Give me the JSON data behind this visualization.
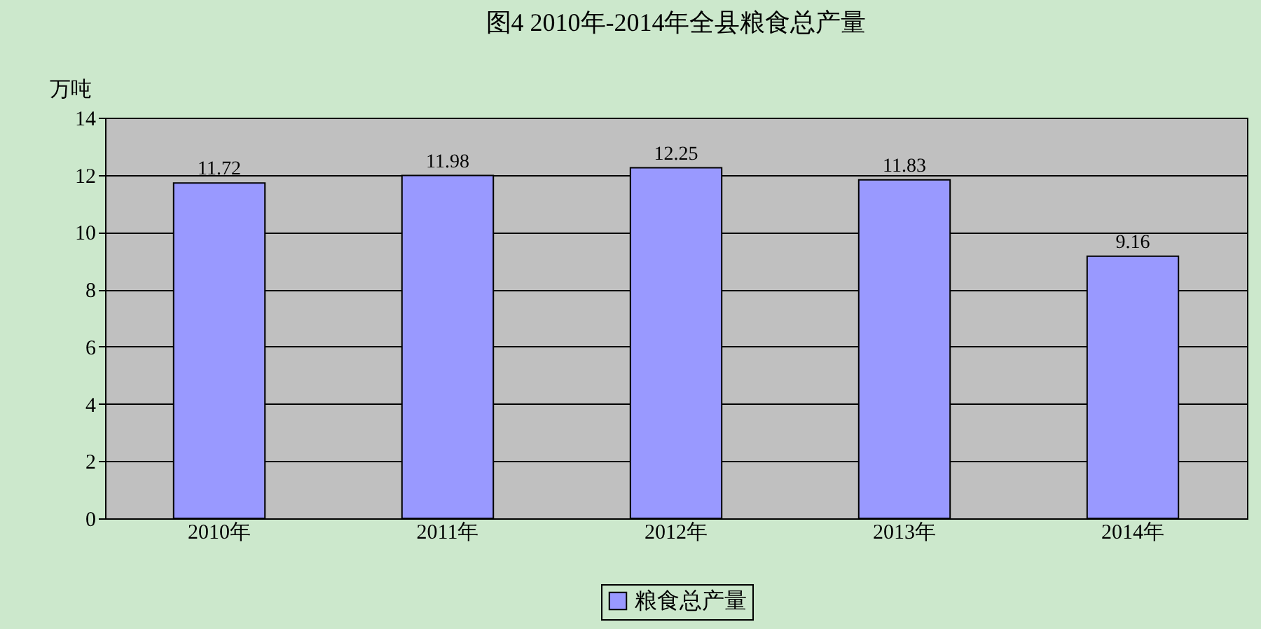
{
  "chart_data": {
    "type": "bar",
    "title": "图4      2010年-2014年全县粮食总产量",
    "ylabel": "万吨",
    "categories": [
      "2010年",
      "2011年",
      "2012年",
      "2013年",
      "2014年"
    ],
    "series": [
      {
        "name": "粮食总产量",
        "color": "#9999ff",
        "values": [
          11.72,
          11.98,
          12.25,
          11.83,
          9.16
        ]
      }
    ],
    "ylim": [
      0,
      14
    ],
    "yticks": [
      0,
      2,
      4,
      6,
      8,
      10,
      12,
      14
    ],
    "grid": "y",
    "legend": "bottom",
    "data_labels": true
  }
}
